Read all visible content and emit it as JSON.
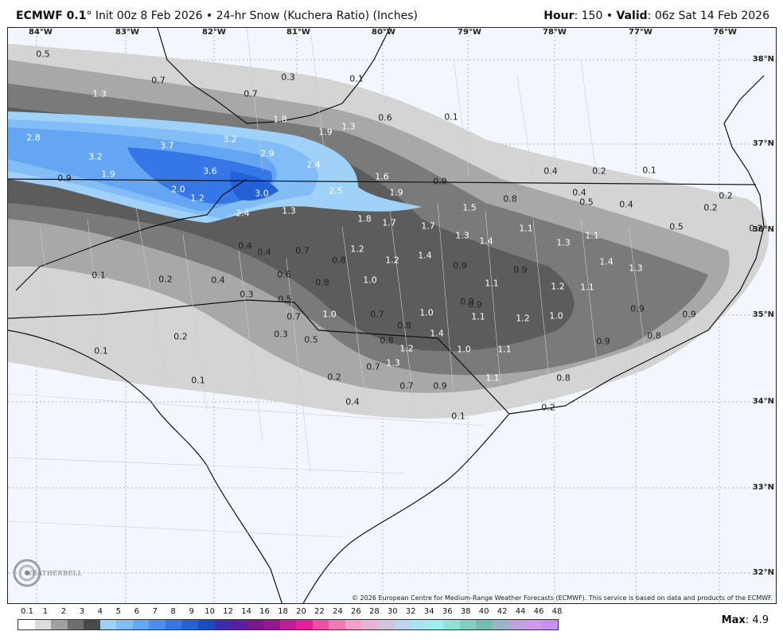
{
  "header": {
    "model": "ECMWF 0.1",
    "degree": "°",
    "init": " Init 00z 8 Feb 2026 • 24-hr Snow (Kuchera Ratio) (Inches)",
    "hour_label": "Hour",
    "hour_value": ": 150 • ",
    "valid_label": "Valid",
    "valid_value": ": 06z Sat 14 Feb 2026"
  },
  "map": {
    "lon_labels": [
      "84°W",
      "83°W",
      "82°W",
      "81°W",
      "80°W",
      "79°W",
      "78°W",
      "77°W",
      "76°W"
    ],
    "lat_labels": [
      "38°N",
      "37°N",
      "36°N",
      "35°N",
      "34°N",
      "33°N",
      "32°N"
    ],
    "copyright": "© 2026 European Centre for Medium-Range Weather Forecasts (ECMWF). This service is based on data and products of the ECMWF.",
    "logo_text": "WEATHERBELL",
    "snow_values": [
      "0.5",
      "0.7",
      "0.3",
      "0.1",
      "1.3",
      "0.7",
      "1.8",
      "1.9",
      "1.3",
      "0.6",
      "0.1",
      "2.8",
      "3.2",
      "3.7",
      "3.2",
      "2.9",
      "2.4",
      "1.6",
      "0.9",
      "0.4",
      "0.2",
      "0.1",
      "0.9",
      "1.9",
      "3.6",
      "2.0",
      "1.2",
      "3.0",
      "2.5",
      "1.9",
      "0.8",
      "0.4",
      "0.5",
      "0.4",
      "0.2",
      "0.2",
      "2.4",
      "1.3",
      "1.8",
      "1.7",
      "1.7",
      "1.5",
      "1.1",
      "1.1",
      "0.5",
      "0.2",
      "0.4",
      "0.4",
      "0.7",
      "0.8",
      "1.2",
      "1.2",
      "1.4",
      "1.3",
      "1.4",
      "1.3",
      "1.4",
      "1.3",
      "0.1",
      "0.2",
      "0.4",
      "0.6",
      "0.8",
      "1.0",
      "0.9",
      "1.1",
      "0.9",
      "1.2",
      "1.1",
      "0.3",
      "0.5",
      "0.7",
      "0.9",
      "0.9",
      "1.0",
      "0.7",
      "1.0",
      "1.1",
      "1.2",
      "1.0",
      "0.9",
      "0.9",
      "0.2",
      "0.3",
      "0.5",
      "0.8",
      "1.4",
      "0.8",
      "0.8",
      "1.2",
      "1.0",
      "1.1",
      "0.9",
      "0.1",
      "1.3",
      "0.7",
      "0.2",
      "0.7",
      "0.9",
      "1.1",
      "0.8",
      "0.1",
      "0.4",
      "0.2",
      "0.1"
    ]
  },
  "scale": {
    "ticks": [
      "0.1",
      "1",
      "2",
      "3",
      "4",
      "5",
      "6",
      "7",
      "8",
      "9",
      "10",
      "12",
      "14",
      "16",
      "18",
      "20",
      "22",
      "24",
      "26",
      "28",
      "30",
      "32",
      "34",
      "36",
      "38",
      "40",
      "42",
      "44",
      "46",
      "48"
    ],
    "colors": [
      "#ffffff",
      "#dcdcdc",
      "#a0a0a0",
      "#6e6e6e",
      "#4a4a4a",
      "#9fd1f9",
      "#82bdf7",
      "#64a6f3",
      "#4a8ef0",
      "#3577e6",
      "#2461d6",
      "#1a4bc0",
      "#3d2bb0",
      "#5a1fa6",
      "#7a168f",
      "#9a1594",
      "#c01b9a",
      "#de2398",
      "#ef4ea8",
      "#f278b6",
      "#f4a0c8",
      "#e8b4d4",
      "#d4c4e0",
      "#bcd4ec",
      "#a8e4f4",
      "#9cf0ec",
      "#8ee4d4",
      "#80d0c0",
      "#76bcb0",
      "#9cb4c8",
      "#bca4dc",
      "#d298ec",
      "#c890f4"
    ],
    "max_label": "Max",
    "max_value": ": 4.9"
  }
}
